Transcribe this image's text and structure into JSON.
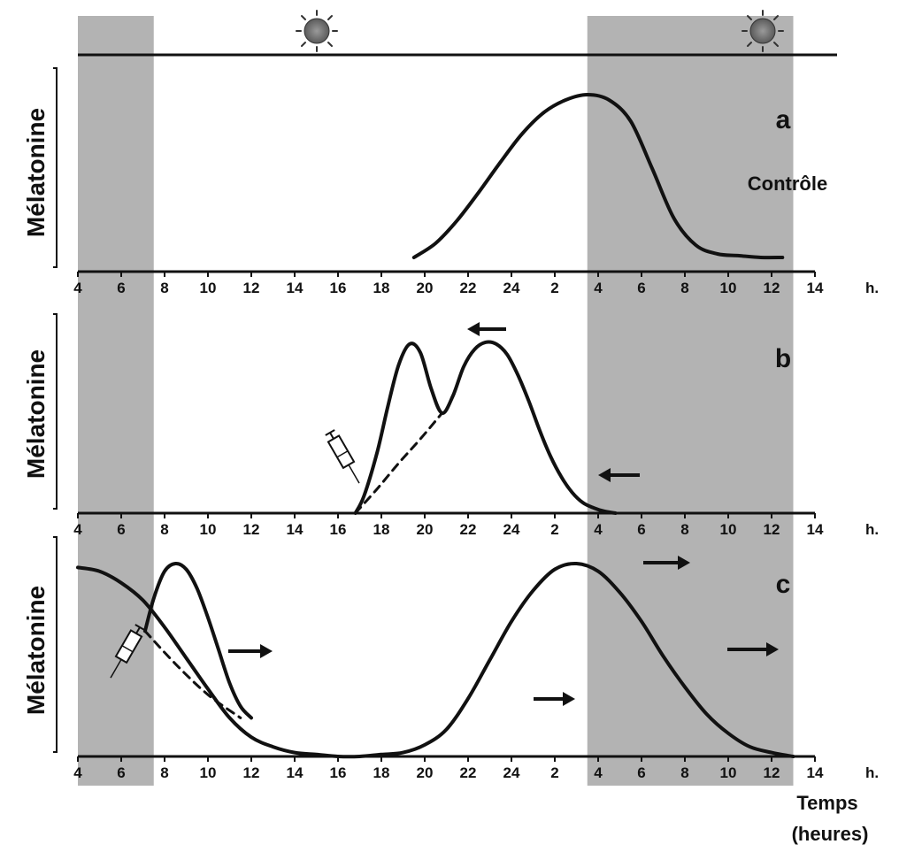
{
  "chart_data": [
    {
      "type": "line",
      "panel_label": "a",
      "annotation": "Contrôle",
      "ylabel": "Mélatonine",
      "xlabel": "h.",
      "x_tick_labels": [
        "4",
        "6",
        "8",
        "10",
        "12",
        "14",
        "16",
        "18",
        "20",
        "22",
        "24",
        "2",
        "4",
        "6",
        "8",
        "10",
        "12",
        "14"
      ],
      "x_unit": "hours since 04:00 (0 = 4 h)",
      "x_range": [
        0,
        34
      ],
      "y_range": [
        0,
        1
      ],
      "y_scale": "relative (no numeric ticks)",
      "series": [
        {
          "style": "solid",
          "x": [
            15.5,
            16.5,
            17.5,
            18.5,
            19.5,
            20.5,
            21.5,
            22.5,
            23.5,
            24.5,
            25.5,
            26.5,
            27.5,
            28.5,
            29.5,
            30.5,
            31.5,
            32.5
          ],
          "y": [
            0.08,
            0.16,
            0.29,
            0.45,
            0.62,
            0.78,
            0.9,
            0.97,
            1.0,
            0.97,
            0.85,
            0.58,
            0.3,
            0.15,
            0.1,
            0.09,
            0.08,
            0.08
          ]
        }
      ],
      "shaded_periods": [
        [
          0,
          3.5
        ],
        [
          23.5,
          33.0
        ]
      ]
    },
    {
      "type": "line",
      "panel_label": "b",
      "ylabel": "Mélatonine",
      "xlabel": "h.",
      "x_tick_labels": [
        "4",
        "6",
        "8",
        "10",
        "12",
        "14",
        "16",
        "18",
        "20",
        "22",
        "24",
        "2",
        "4",
        "6",
        "8",
        "10",
        "12",
        "14"
      ],
      "x_unit": "hours since 04:00 (0 = 4 h)",
      "x_range": [
        0,
        34
      ],
      "y_range": [
        0,
        1
      ],
      "series": [
        {
          "style": "solid",
          "x": [
            12.8,
            13.2,
            13.8,
            14.3,
            14.8,
            15.3,
            15.8,
            16.3,
            16.8,
            17.3,
            17.8,
            18.3,
            18.8,
            19.3,
            19.8,
            20.3,
            20.8,
            21.3,
            21.8,
            22.3,
            22.8,
            23.3,
            23.8,
            24.3,
            24.8
          ],
          "y": [
            0.0,
            0.1,
            0.35,
            0.62,
            0.86,
            0.98,
            0.93,
            0.72,
            0.58,
            0.68,
            0.85,
            0.95,
            0.99,
            0.98,
            0.92,
            0.8,
            0.65,
            0.48,
            0.33,
            0.21,
            0.12,
            0.06,
            0.03,
            0.01,
            0.0
          ]
        },
        {
          "style": "dashed",
          "x": [
            12.8,
            13.8,
            14.8,
            15.8,
            16.8
          ],
          "y": [
            0.0,
            0.14,
            0.29,
            0.43,
            0.58
          ]
        }
      ],
      "arrows": [
        "left",
        "left"
      ],
      "shaded_periods": [
        [
          0,
          3.5
        ],
        [
          23.5,
          33.0
        ]
      ]
    },
    {
      "type": "line",
      "panel_label": "c",
      "ylabel": "Mélatonine",
      "xlabel": "h.",
      "x_tick_labels": [
        "4",
        "6",
        "8",
        "10",
        "12",
        "14",
        "16",
        "18",
        "20",
        "22",
        "24",
        "2",
        "4",
        "6",
        "8",
        "10",
        "12",
        "14"
      ],
      "x_unit": "hours since 04:00 (0 = 4 h)",
      "x_range": [
        0,
        34
      ],
      "y_range": [
        0,
        1
      ],
      "series": [
        {
          "style": "solid",
          "x": [
            0,
            1,
            2,
            3,
            4,
            5,
            6,
            7,
            8,
            9,
            10,
            11,
            12,
            13,
            14,
            15,
            16,
            17,
            18,
            19,
            20,
            21,
            22,
            23,
            24,
            25,
            26,
            27,
            28,
            29,
            30,
            31,
            32,
            33
          ],
          "y": [
            0.98,
            0.96,
            0.9,
            0.81,
            0.67,
            0.51,
            0.35,
            0.2,
            0.1,
            0.05,
            0.02,
            0.01,
            0.0,
            0.0,
            0.01,
            0.02,
            0.06,
            0.14,
            0.3,
            0.5,
            0.7,
            0.86,
            0.97,
            1.0,
            0.96,
            0.85,
            0.7,
            0.52,
            0.36,
            0.22,
            0.12,
            0.05,
            0.02,
            0.0
          ]
        },
        {
          "style": "solid",
          "x": [
            3.1,
            3.5,
            4.0,
            4.5,
            5.0,
            5.5,
            6.0,
            6.5,
            7.0,
            7.5,
            8.0
          ],
          "y": [
            0.65,
            0.82,
            0.96,
            1.0,
            0.97,
            0.87,
            0.72,
            0.55,
            0.38,
            0.26,
            0.2
          ]
        },
        {
          "style": "dashed",
          "x": [
            3.1,
            4.5,
            6.0,
            7.5
          ],
          "y": [
            0.65,
            0.48,
            0.32,
            0.2
          ]
        }
      ],
      "arrows": [
        "right",
        "right",
        "right",
        "right"
      ],
      "shaded_periods": [
        [
          0,
          3.5
        ],
        [
          23.5,
          33.0
        ]
      ]
    }
  ],
  "x_axis_title": [
    "Temps",
    "(heures)"
  ]
}
